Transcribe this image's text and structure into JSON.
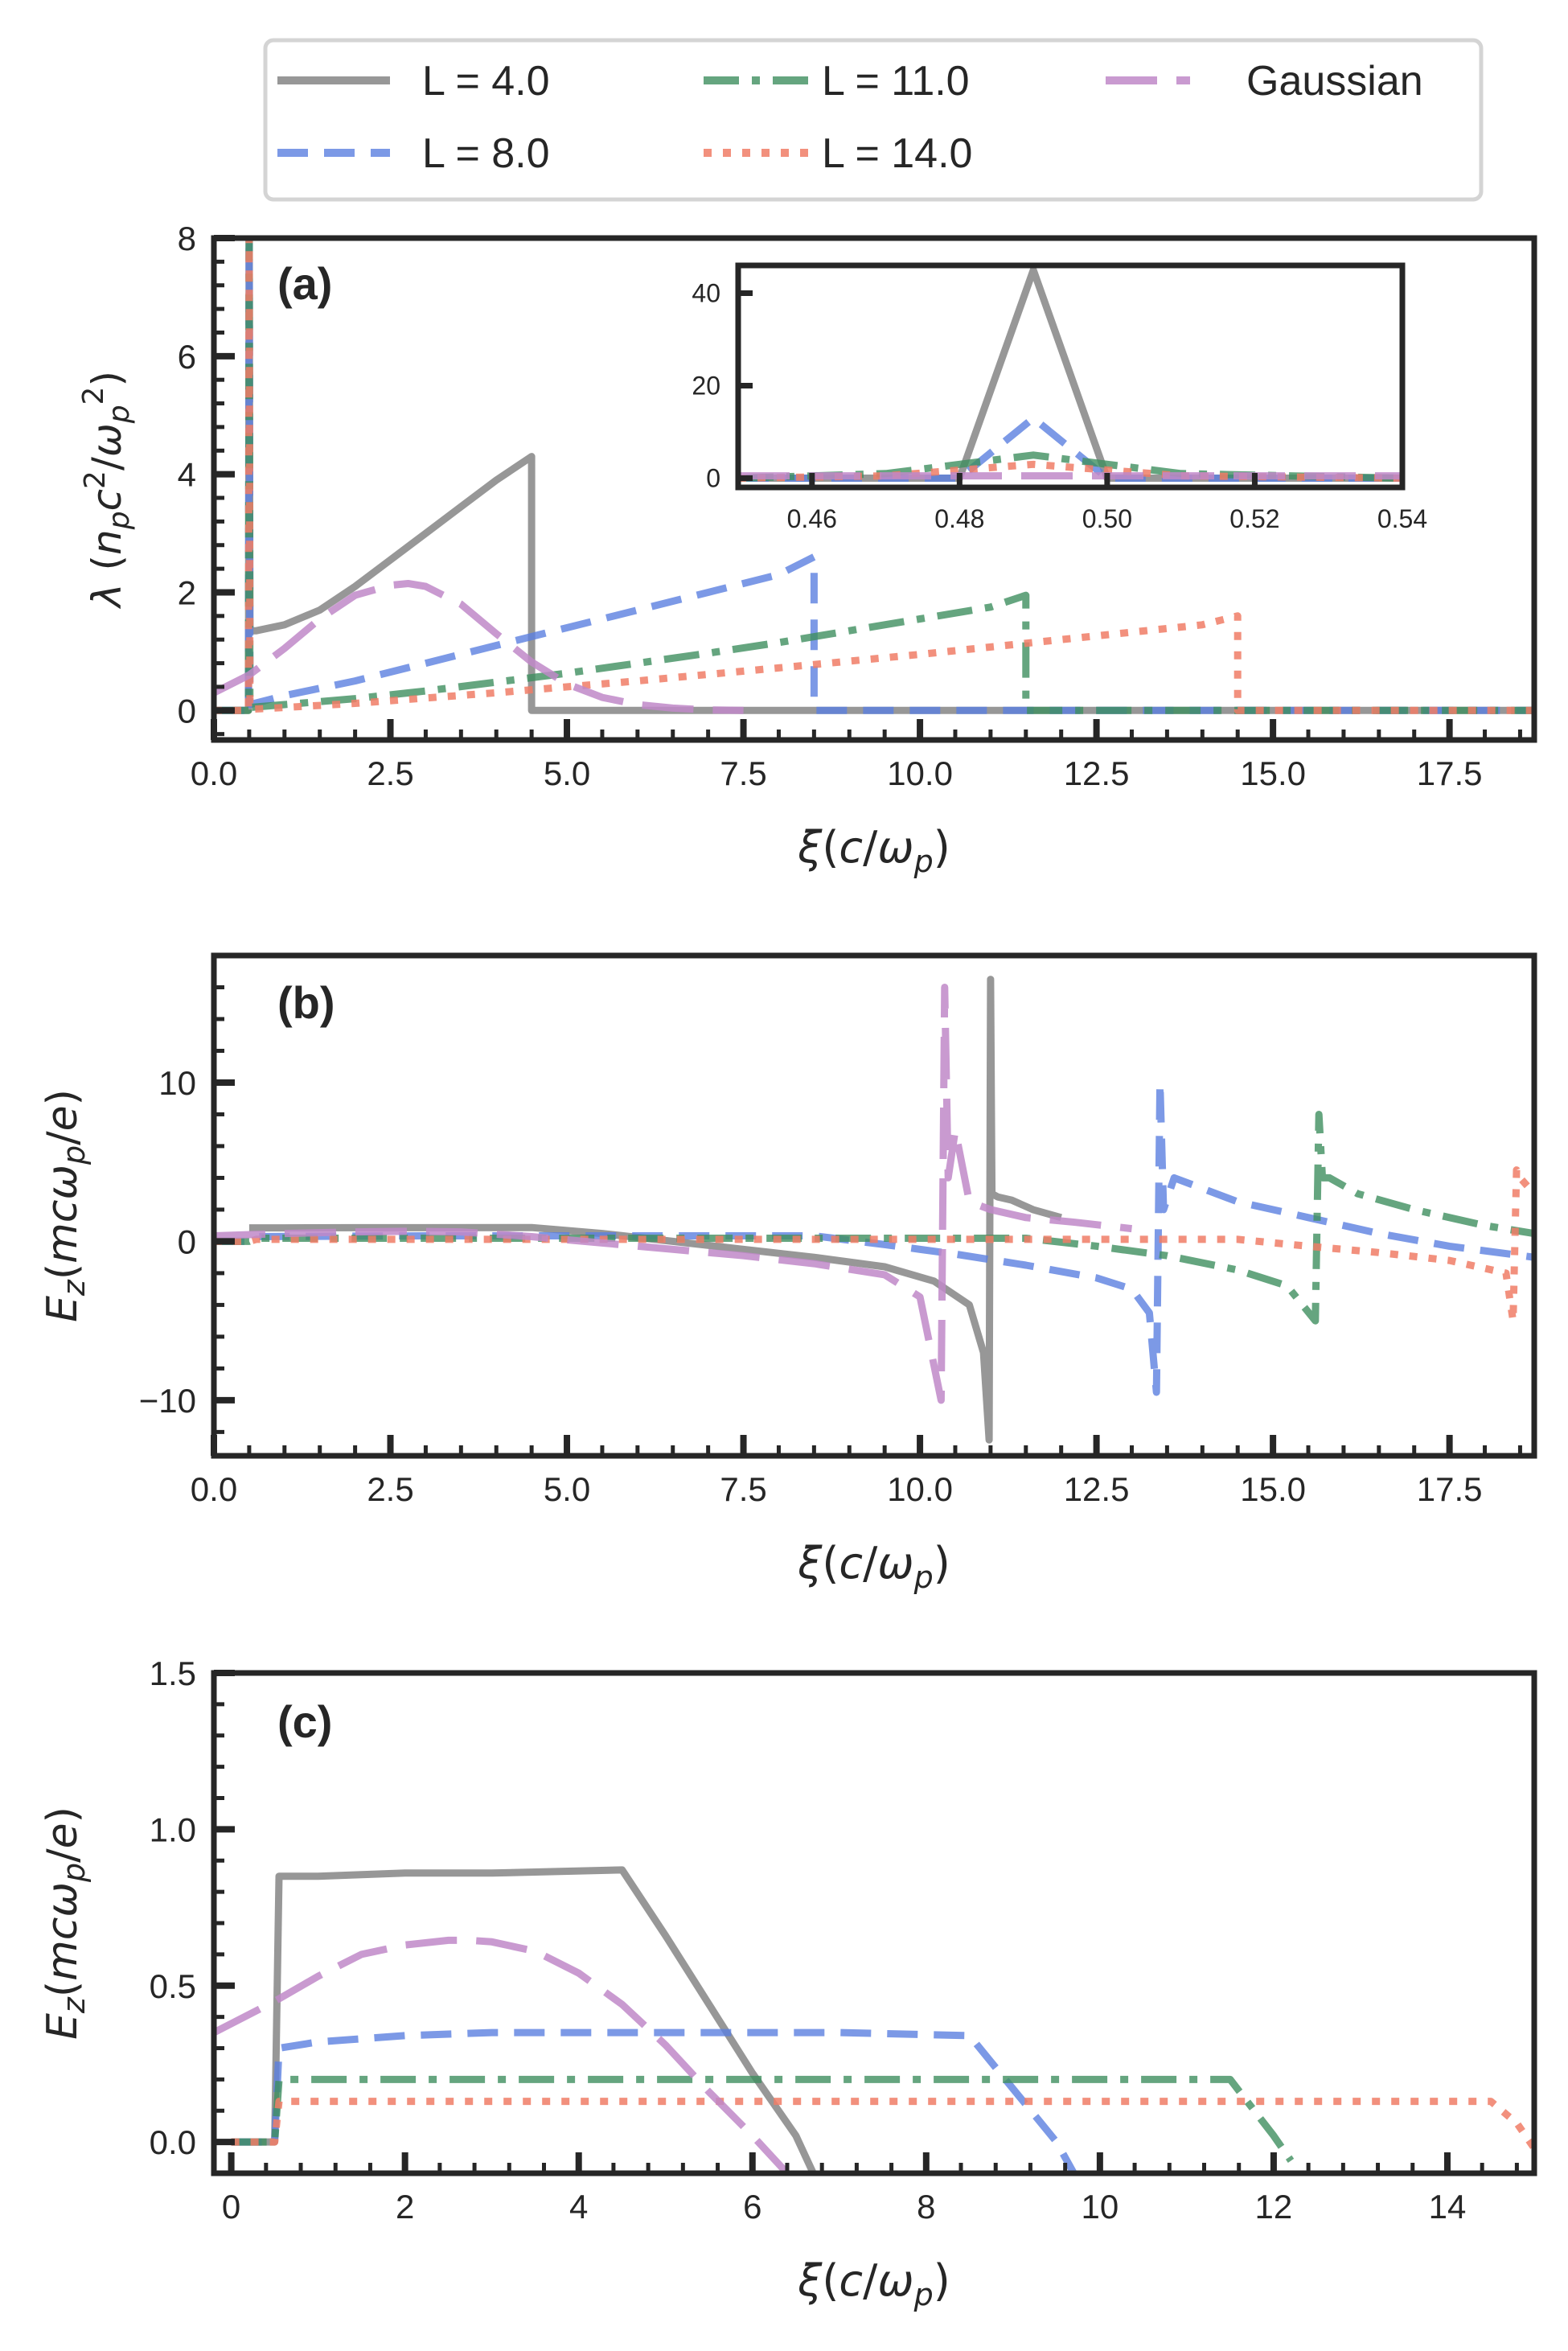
{
  "figure_title": "",
  "colors": {
    "L4": "#8c8c8c",
    "L8": "#5b7fe0",
    "L11": "#3f8f5f",
    "L14": "#f07c66",
    "Gaussian": "#c088c8",
    "axes": "#262626"
  },
  "legend": {
    "placement": "top-center",
    "entries": [
      {
        "key": "L4",
        "label": "L = 4.0"
      },
      {
        "key": "L11",
        "label": "L = 11.0"
      },
      {
        "key": "Gaussian",
        "label": "Gaussian"
      },
      {
        "key": "L8",
        "label": "L = 8.0"
      },
      {
        "key": "L14",
        "label": "L = 14.0"
      }
    ]
  },
  "chart_data": [
    {
      "panel": "(a)",
      "type": "line",
      "xlabel": "ξ(c/ωp)",
      "ylabel": "λ (npc²/ωp²)",
      "xlim": [
        0,
        18.7
      ],
      "ylim": [
        -0.5,
        8
      ],
      "xticks": [
        0.0,
        2.5,
        5.0,
        7.5,
        10.0,
        12.5,
        15.0,
        17.5
      ],
      "xtick_labels": [
        "0.0",
        "2.5",
        "5.0",
        "7.5",
        "10.0",
        "12.5",
        "15.0",
        "17.5"
      ],
      "yticks": [
        0,
        2,
        4,
        6,
        8
      ],
      "ytick_labels": [
        "0",
        "2",
        "4",
        "6",
        "8"
      ],
      "series": [
        {
          "key": "L4",
          "name": "L = 4.0",
          "x": [
            0,
            0.49,
            0.5,
            0.51,
            0.6,
            1.0,
            1.5,
            2.0,
            2.5,
            3.0,
            3.5,
            4.0,
            4.5,
            4.5,
            18.7
          ],
          "y": [
            0,
            0,
            8.5,
            1.35,
            1.35,
            1.45,
            1.7,
            2.1,
            2.55,
            3.0,
            3.45,
            3.9,
            4.3,
            0,
            0
          ]
        },
        {
          "key": "L8",
          "name": "L = 8.0",
          "x": [
            0,
            0.49,
            0.5,
            0.51,
            1.0,
            2.0,
            3.0,
            4.0,
            5.0,
            6.0,
            7.0,
            8.0,
            8.5,
            8.5,
            18.7
          ],
          "y": [
            0,
            0,
            8.5,
            0.1,
            0.25,
            0.5,
            0.8,
            1.1,
            1.4,
            1.7,
            2.0,
            2.3,
            2.6,
            0,
            0
          ]
        },
        {
          "key": "L11",
          "name": "L = 11.0",
          "x": [
            0,
            0.49,
            0.5,
            0.51,
            1.0,
            2.0,
            3.0,
            4.0,
            5.0,
            6.0,
            7.0,
            8.0,
            9.0,
            10.0,
            11.0,
            11.5,
            11.5,
            18.7
          ],
          "y": [
            0,
            0,
            8.5,
            0.05,
            0.1,
            0.2,
            0.33,
            0.48,
            0.63,
            0.8,
            0.97,
            1.15,
            1.35,
            1.55,
            1.75,
            1.95,
            0,
            0
          ]
        },
        {
          "key": "L14",
          "name": "L = 14.0",
          "x": [
            0,
            0.49,
            0.5,
            0.51,
            1.0,
            2.0,
            4.0,
            6.0,
            8.0,
            10.0,
            12.0,
            14.0,
            14.5,
            14.5,
            18.7
          ],
          "y": [
            0,
            0,
            8.5,
            0.02,
            0.05,
            0.12,
            0.3,
            0.5,
            0.72,
            0.95,
            1.2,
            1.45,
            1.6,
            0,
            0
          ]
        },
        {
          "key": "Gaussian",
          "name": "Gaussian",
          "x": [
            0,
            0.5,
            1.0,
            1.5,
            2.0,
            2.5,
            2.75,
            3.0,
            3.5,
            4.0,
            4.5,
            5.0,
            5.5,
            6.0,
            6.5,
            7.0,
            7.5
          ],
          "y": [
            0.3,
            0.6,
            1.05,
            1.55,
            1.95,
            2.12,
            2.15,
            2.1,
            1.8,
            1.3,
            0.82,
            0.45,
            0.22,
            0.1,
            0.04,
            0.01,
            0
          ]
        }
      ],
      "inset": {
        "xlim": [
          0.45,
          0.54
        ],
        "ylim": [
          -2,
          46
        ],
        "xticks": [
          0.46,
          0.48,
          0.5,
          0.52,
          0.54
        ],
        "xtick_labels": [
          "0.46",
          "0.48",
          "0.50",
          "0.52",
          "0.54"
        ],
        "yticks": [
          0,
          20,
          40
        ],
        "ytick_labels": [
          "0",
          "20",
          "40"
        ],
        "series": [
          {
            "key": "L4",
            "x": [
              0.45,
              0.48,
              0.49,
              0.5,
              0.54
            ],
            "y": [
              0,
              0,
              45,
              0,
              0
            ]
          },
          {
            "key": "L8",
            "x": [
              0.45,
              0.48,
              0.49,
              0.5,
              0.54
            ],
            "y": [
              0,
              0,
              13,
              0,
              0
            ]
          },
          {
            "key": "L11",
            "x": [
              0.45,
              0.47,
              0.49,
              0.51,
              0.54
            ],
            "y": [
              0,
              1,
              5,
              1,
              0
            ]
          },
          {
            "key": "L14",
            "x": [
              0.45,
              0.47,
              0.49,
              0.51,
              0.54
            ],
            "y": [
              0,
              0.5,
              3,
              0.5,
              0
            ]
          },
          {
            "key": "Gaussian",
            "x": [
              0.45,
              0.54
            ],
            "y": [
              0.5,
              0.5
            ]
          }
        ]
      }
    },
    {
      "panel": "(b)",
      "type": "line",
      "xlabel": "ξ(c/ωp)",
      "ylabel": "Ez(mcωp/e)",
      "xlim": [
        0,
        18.7
      ],
      "ylim": [
        -13.5,
        18
      ],
      "xticks": [
        0.0,
        2.5,
        5.0,
        7.5,
        10.0,
        12.5,
        15.0,
        17.5
      ],
      "xtick_labels": [
        "0.0",
        "2.5",
        "5.0",
        "7.5",
        "10.0",
        "12.5",
        "15.0",
        "17.5"
      ],
      "yticks": [
        -10,
        0,
        10
      ],
      "ytick_labels": [
        "−10",
        "0",
        "10"
      ],
      "series": [
        {
          "key": "L4",
          "name": "L = 4.0",
          "x": [
            0.5,
            1.0,
            2.0,
            3.0,
            4.5,
            5.5,
            6.5,
            7.5,
            8.5,
            9.5,
            10.2,
            10.7,
            10.9,
            10.98,
            11.0,
            11.02,
            11.1,
            11.3,
            11.6,
            12.0
          ],
          "y": [
            0.85,
            0.85,
            0.86,
            0.86,
            0.87,
            0.5,
            0,
            -0.5,
            -1.0,
            -1.6,
            -2.5,
            -4.0,
            -7.0,
            -12.5,
            16.5,
            3.0,
            2.8,
            2.6,
            2.0,
            1.5
          ]
        },
        {
          "key": "L8",
          "name": "L = 8.0",
          "x": [
            0,
            0.5,
            0.6,
            3.0,
            8.5,
            9.5,
            10.5,
            11.5,
            12.5,
            13.0,
            13.25,
            13.35,
            13.4,
            13.45,
            13.6,
            13.9,
            14.5,
            15.5,
            16.5,
            17.5,
            18.7
          ],
          "y": [
            0,
            0,
            0.3,
            0.35,
            0.35,
            -0.2,
            -0.8,
            -1.5,
            -2.3,
            -3.0,
            -4.5,
            -9.5,
            10.0,
            2.0,
            4.0,
            3.5,
            2.5,
            1.5,
            0.5,
            -0.3,
            -1.0
          ]
        },
        {
          "key": "L11",
          "name": "L = 11.0",
          "x": [
            0,
            0.5,
            0.6,
            4.0,
            11.5,
            12.5,
            13.5,
            14.5,
            15.2,
            15.6,
            15.65,
            15.7,
            15.8,
            16.2,
            17.0,
            18.0,
            18.7
          ],
          "y": [
            0,
            0,
            0.2,
            0.2,
            0.2,
            -0.3,
            -0.9,
            -1.8,
            -2.8,
            -5.0,
            8.0,
            4.0,
            4.0,
            3.0,
            2.0,
            1.0,
            0.5
          ]
        },
        {
          "key": "L14",
          "name": "L = 14.0",
          "x": [
            0,
            0.5,
            0.6,
            4.0,
            10.0,
            14.5,
            15.5,
            16.5,
            17.5,
            18.3,
            18.4,
            18.45,
            18.5,
            18.7
          ],
          "y": [
            0,
            0,
            0.13,
            0.13,
            0.13,
            0.13,
            -0.3,
            -0.7,
            -1.2,
            -2.0,
            -5.0,
            4.5,
            4.0,
            3.0
          ]
        },
        {
          "key": "Gaussian",
          "name": "Gaussian",
          "x": [
            0,
            1.0,
            2.0,
            2.75,
            3.5,
            4.5,
            5.5,
            6.5,
            7.5,
            8.5,
            9.5,
            10.0,
            10.3,
            10.35,
            10.4,
            10.5,
            10.7,
            11.0,
            11.5,
            12.2,
            13.0
          ],
          "y": [
            0.35,
            0.5,
            0.6,
            0.64,
            0.6,
            0.3,
            -0.1,
            -0.5,
            -0.9,
            -1.4,
            -2.1,
            -3.5,
            -10.0,
            16.0,
            4.0,
            7.0,
            2.5,
            2.0,
            1.5,
            1.2,
            0.8
          ]
        }
      ]
    },
    {
      "panel": "(c)",
      "type": "line",
      "xlabel": "ξ(c/ωp)",
      "ylabel": "Ez(mcωp/e)",
      "xlim": [
        -0.2,
        15.0
      ],
      "ylim": [
        -0.1,
        1.5
      ],
      "xticks": [
        0,
        2,
        4,
        6,
        8,
        10,
        12,
        14
      ],
      "xtick_labels": [
        "0",
        "2",
        "4",
        "6",
        "8",
        "10",
        "12",
        "14"
      ],
      "yticks": [
        0.0,
        0.5,
        1.0,
        1.5
      ],
      "ytick_labels": [
        "0.0",
        "0.5",
        "1.0",
        "1.5"
      ],
      "series": [
        {
          "key": "L4",
          "name": "L = 4.0",
          "x": [
            0,
            0.5,
            0.55,
            1.0,
            2.0,
            3.0,
            4.5,
            5.0,
            5.5,
            6.0,
            6.5,
            6.7
          ],
          "y": [
            0,
            0,
            0.85,
            0.85,
            0.86,
            0.86,
            0.87,
            0.66,
            0.44,
            0.22,
            0.02,
            -0.1
          ]
        },
        {
          "key": "L8",
          "name": "L = 8.0",
          "x": [
            0,
            0.5,
            0.55,
            1.0,
            2.0,
            3.0,
            5.0,
            7.0,
            8.5,
            9.0,
            9.5,
            9.7
          ],
          "y": [
            0,
            0,
            0.3,
            0.32,
            0.34,
            0.35,
            0.35,
            0.35,
            0.34,
            0.17,
            0.0,
            -0.1
          ]
        },
        {
          "key": "L11",
          "name": "L = 11.0",
          "x": [
            0,
            0.5,
            0.55,
            2.0,
            6.0,
            10.0,
            11.5,
            12.0,
            12.2
          ],
          "y": [
            0,
            0,
            0.2,
            0.2,
            0.2,
            0.2,
            0.2,
            0.02,
            -0.06
          ]
        },
        {
          "key": "L14",
          "name": "L = 14.0",
          "x": [
            0,
            0.5,
            0.55,
            2.0,
            6.0,
            10.0,
            14.0,
            14.5,
            14.8,
            15.0
          ],
          "y": [
            0,
            0,
            0.13,
            0.13,
            0.13,
            0.13,
            0.13,
            0.13,
            0.06,
            -0.02
          ]
        },
        {
          "key": "Gaussian",
          "name": "Gaussian",
          "x": [
            -0.2,
            0.5,
            1.0,
            1.5,
            2.0,
            2.5,
            2.75,
            3.0,
            3.5,
            4.0,
            4.5,
            5.0,
            5.5,
            6.0,
            6.4
          ],
          "y": [
            0.35,
            0.45,
            0.53,
            0.6,
            0.63,
            0.645,
            0.645,
            0.64,
            0.61,
            0.54,
            0.44,
            0.31,
            0.16,
            0.02,
            -0.1
          ]
        }
      ]
    }
  ]
}
